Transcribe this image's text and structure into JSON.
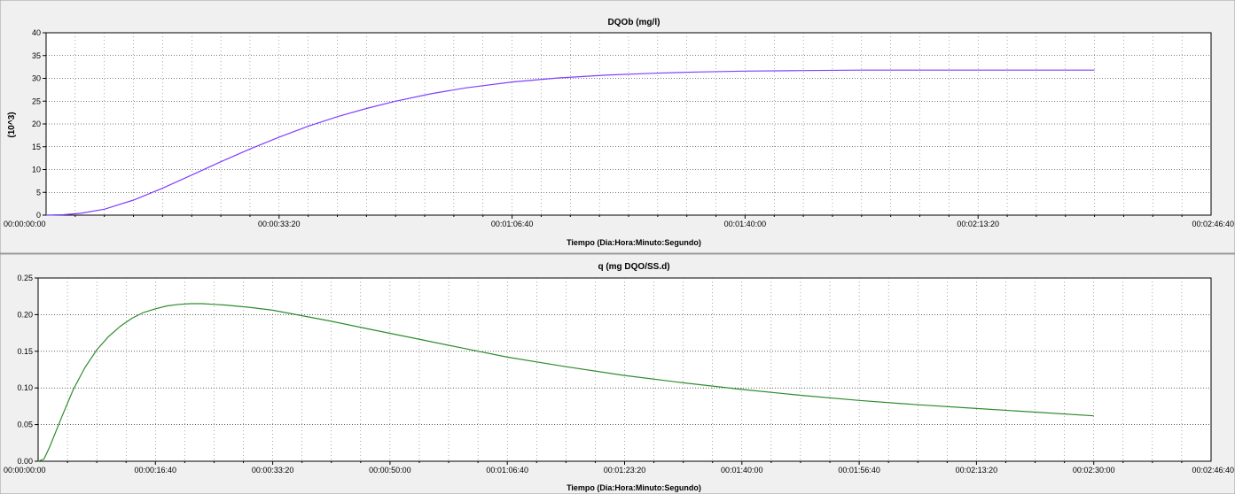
{
  "chart_data": [
    {
      "type": "line",
      "title": "DQOb (mg/l)",
      "xlabel": "Tiempo (Dia:Hora:Minuto:Segundo)",
      "ylabel": "(10^3)",
      "xlim": [
        0,
        10000
      ],
      "ylim": [
        0,
        40
      ],
      "x_ticks": [
        "00:00:00:00",
        "00:00:33:20",
        "00:01:06:40",
        "00:01:40:00",
        "00:02:13:20",
        "00:02:46:40"
      ],
      "y_ticks": [
        "0",
        "5",
        "10",
        "15",
        "20",
        "25",
        "30",
        "35",
        "40"
      ],
      "grid": true,
      "series": [
        {
          "color": "#7f3fff",
          "x": [
            0,
            150,
            300,
            500,
            750,
            1000,
            1250,
            1500,
            1750,
            2000,
            2250,
            2500,
            2750,
            3000,
            3300,
            3600,
            4000,
            4400,
            4800,
            5200,
            5600,
            6000,
            6500,
            7000,
            7500,
            8000,
            8500,
            9000
          ],
          "y": [
            0,
            0.1,
            0.4,
            1.3,
            3.3,
            5.9,
            8.8,
            11.7,
            14.5,
            17.1,
            19.5,
            21.6,
            23.4,
            25.0,
            26.6,
            27.9,
            29.2,
            30.1,
            30.7,
            31.1,
            31.4,
            31.6,
            31.7,
            31.8,
            31.8,
            31.8,
            31.8,
            31.8
          ]
        }
      ]
    },
    {
      "type": "line",
      "title": "q (mg DQO/SS.d)",
      "xlabel": "Tiempo (Dia:Hora:Minuto:Segundo)",
      "ylabel": "",
      "xlim": [
        0,
        10000
      ],
      "ylim": [
        0,
        0.25
      ],
      "x_ticks": [
        "00:00:00:00",
        "00:00:16:40",
        "00:00:33:20",
        "00:00:50:00",
        "00:01:06:40",
        "00:01:23:20",
        "00:01:40:00",
        "00:01:56:40",
        "00:02:13:20",
        "00:02:30:00",
        "00:02:46:40"
      ],
      "y_ticks": [
        "0.00",
        "0.05",
        "0.10",
        "0.15",
        "0.20",
        "0.25"
      ],
      "grid": true,
      "series": [
        {
          "color": "#2e8b2e",
          "x": [
            0,
            50,
            100,
            200,
            300,
            400,
            500,
            600,
            700,
            800,
            900,
            1000,
            1100,
            1200,
            1300,
            1400,
            1500,
            1600,
            1800,
            2000,
            2200,
            2500,
            2800,
            3200,
            3600,
            4000,
            4500,
            5000,
            5500,
            6000,
            6500,
            7000,
            7500,
            8000,
            8500,
            9000
          ],
          "y": [
            0,
            0.003,
            0.02,
            0.06,
            0.098,
            0.128,
            0.152,
            0.17,
            0.184,
            0.195,
            0.203,
            0.208,
            0.212,
            0.214,
            0.215,
            0.215,
            0.214,
            0.213,
            0.21,
            0.206,
            0.2,
            0.191,
            0.181,
            0.168,
            0.155,
            0.142,
            0.129,
            0.117,
            0.107,
            0.098,
            0.09,
            0.083,
            0.077,
            0.072,
            0.067,
            0.062
          ]
        }
      ]
    }
  ]
}
